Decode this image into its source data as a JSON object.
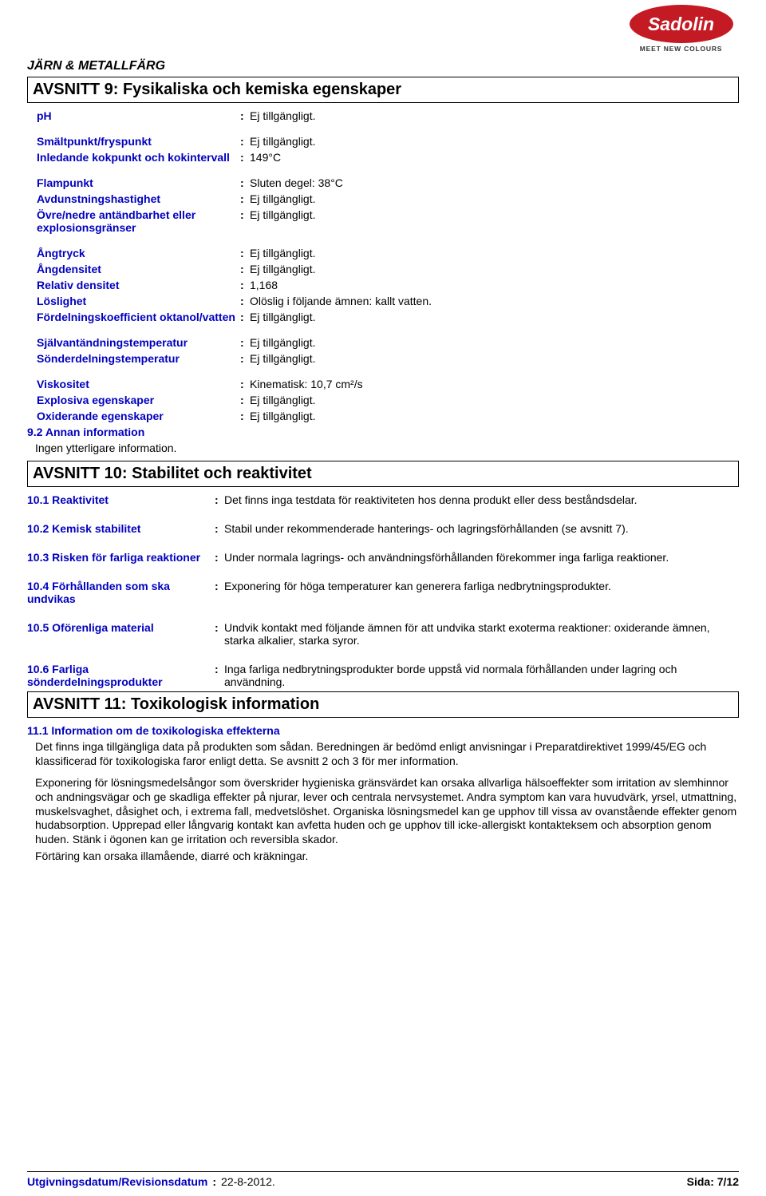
{
  "brand": {
    "name": "Sadolin",
    "tagline": "MEET NEW COLOURS",
    "bg": "#c31a23",
    "text": "#ffffff"
  },
  "product_title": "JÄRN & METALLFÄRG",
  "section9": {
    "title": "AVSNITT 9: Fysikaliska och kemiska egenskaper",
    "rows": [
      {
        "label": "pH",
        "value": "Ej tillgängligt."
      },
      {
        "label": "Smältpunkt/fryspunkt",
        "value": "Ej tillgängligt."
      },
      {
        "label": "Inledande kokpunkt och kokintervall",
        "value": "149°C"
      },
      {
        "label": "Flampunkt",
        "value": "Sluten degel: 38°C"
      },
      {
        "label": "Avdunstningshastighet",
        "value": "Ej tillgängligt."
      },
      {
        "label": "Övre/nedre antändbarhet eller explosionsgränser",
        "value": "Ej tillgängligt."
      },
      {
        "label": "Ångtryck",
        "value": "Ej tillgängligt."
      },
      {
        "label": "Ångdensitet",
        "value": "Ej tillgängligt."
      },
      {
        "label": "Relativ densitet",
        "value": "1,168"
      },
      {
        "label": "Löslighet",
        "value": "Olöslig i följande ämnen: kallt vatten."
      },
      {
        "label": "Fördelningskoefficient oktanol/vatten",
        "value": "Ej tillgängligt."
      },
      {
        "label": "Självantändningstemperatur",
        "value": "Ej tillgängligt."
      },
      {
        "label": "Sönderdelningstemperatur",
        "value": "Ej tillgängligt."
      },
      {
        "label": "Viskositet",
        "value": "Kinematisk: 10,7 cm²/s"
      },
      {
        "label": "Explosiva egenskaper",
        "value": "Ej tillgängligt."
      },
      {
        "label": "Oxiderande egenskaper",
        "value": "Ej tillgängligt."
      }
    ],
    "sub92": "9.2 Annan information",
    "sub92_body": "Ingen ytterligare information."
  },
  "section10": {
    "title": "AVSNITT 10: Stabilitet och reaktivitet",
    "rows": [
      {
        "label": "10.1 Reaktivitet",
        "value": "Det finns inga testdata för reaktiviteten hos denna produkt eller dess beståndsdelar."
      },
      {
        "label": "10.2 Kemisk stabilitet",
        "value": "Stabil under rekommenderade hanterings- och lagringsförhållanden (se avsnitt 7)."
      },
      {
        "label": "10.3 Risken för farliga reaktioner",
        "value": "Under normala lagrings- och användningsförhållanden förekommer inga farliga reaktioner."
      },
      {
        "label": "10.4 Förhållanden som ska undvikas",
        "value": "Exponering för höga temperaturer kan generera farliga nedbrytningsprodukter."
      },
      {
        "label": "10.5 Oförenliga material",
        "value": "Undvik kontakt med följande ämnen för att undvika starkt exoterma reaktioner: oxiderande ämnen, starka alkalier, starka syror."
      },
      {
        "label": "10.6 Farliga sönderdelningsprodukter",
        "value": "Inga farliga nedbrytningsprodukter borde uppstå vid normala förhållanden under lagring och användning."
      }
    ]
  },
  "section11": {
    "title": "AVSNITT 11: Toxikologisk information",
    "sub111": "11.1 Information om de toxikologiska effekterna",
    "para1": "Det finns inga tillgängliga data på produkten som sådan. Beredningen är bedömd enligt anvisningar i Preparatdirektivet 1999/45/EG och klassificerad för toxikologiska faror enligt detta.  Se avsnitt 2 och 3 för mer information.",
    "para2": "Exponering för lösningsmedelsångor som överskrider hygieniska gränsvärdet kan orsaka allvarliga hälsoeffekter som irritation av slemhinnor och andningsvägar och ge skadliga effekter på njurar, lever och centrala nervsystemet. Andra symptom kan vara huvudvärk, yrsel, utmattning, muskelsvaghet, dåsighet och, i extrema fall, medvetslöshet. Organiska lösningsmedel kan ge upphov till vissa av ovanstående effekter genom hudabsorption. Upprepad eller långvarig kontakt kan avfetta huden och ge upphov till icke-allergiskt kontakteksem och absorption genom huden. Stänk i ögonen kan ge irritation och reversibla skador.",
    "para3": "Förtäring kan orsaka illamående, diarré och kräkningar."
  },
  "footer": {
    "label": "Utgivningsdatum/Revisionsdatum",
    "date": "22-8-2012.",
    "page": "Sida: 7/12"
  },
  "colors": {
    "label_blue": "#0000bf"
  }
}
